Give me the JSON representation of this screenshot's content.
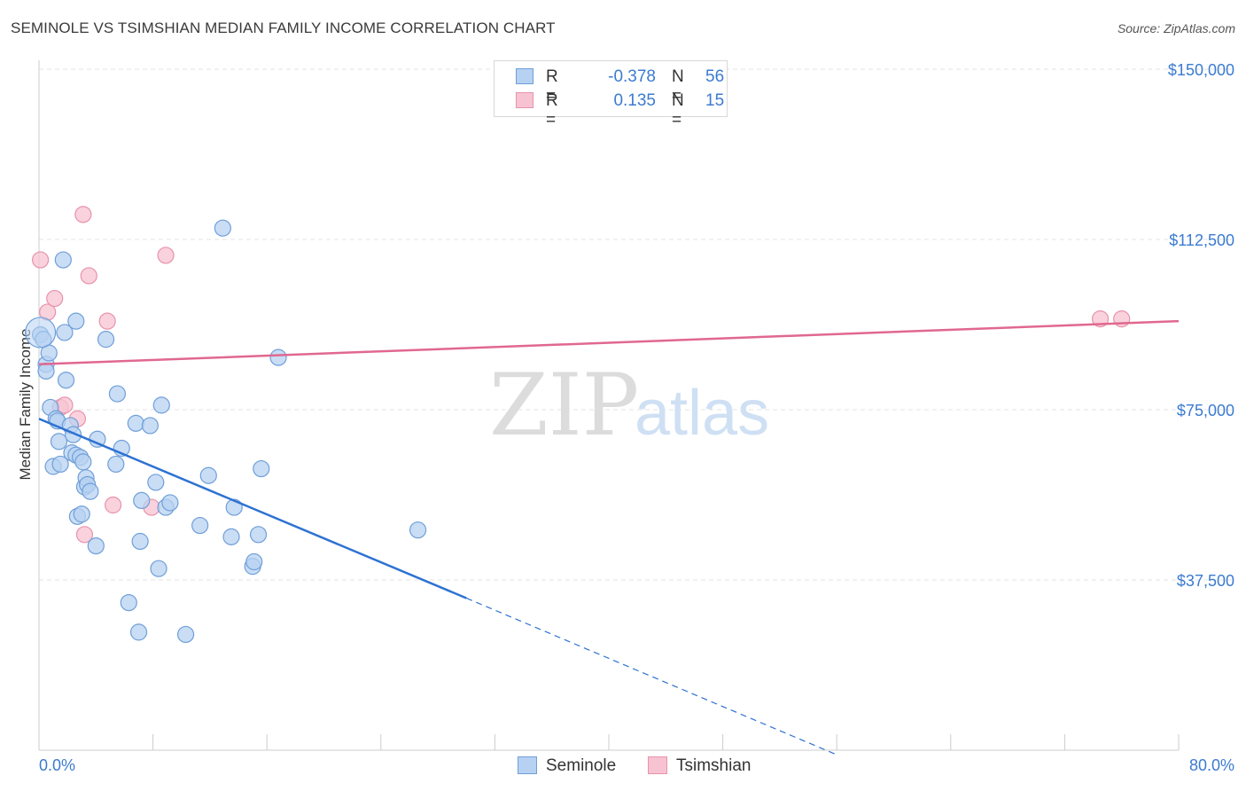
{
  "title": "SEMINOLE VS TSIMSHIAN MEDIAN FAMILY INCOME CORRELATION CHART",
  "source": "Source: ZipAtlas.com",
  "watermark": {
    "zip": "ZIP",
    "atlas": "atlas"
  },
  "legend_top": [
    {
      "r_label": "R =",
      "r_value": "-0.378",
      "n_label": "N =",
      "n_value": "56"
    },
    {
      "r_label": "R =",
      "r_value": "0.135",
      "n_label": "N =",
      "n_value": "15"
    }
  ],
  "legend_bottom": [
    {
      "label": "Seminole"
    },
    {
      "label": "Tsimshian"
    }
  ],
  "colors": {
    "seminole_fill": "#b7d1f2",
    "seminole_stroke": "#6f9fd8",
    "seminole_line": "#2d72d2",
    "tsimshian_fill": "#f7c3d2",
    "tsimshian_stroke": "#e892ac",
    "tsimshian_line": "#e06890",
    "tick_text": "#3b7bd1",
    "grid": "#e3e3e3"
  },
  "chart_data": {
    "type": "scatter",
    "title": "SEMINOLE VS TSIMSHIAN MEDIAN FAMILY INCOME CORRELATION CHART",
    "xlabel": "",
    "ylabel": "Median Family Income",
    "xlim": [
      0,
      80
    ],
    "ylim": [
      0,
      155000
    ],
    "x_tick_labels": [
      "0.0%",
      "80.0%"
    ],
    "y_ticks": [
      37500,
      75000,
      112500,
      150000
    ],
    "y_tick_labels": [
      "$37,500",
      "$75,000",
      "$112,500",
      "$150,000"
    ],
    "series": [
      {
        "name": "Seminole",
        "r": -0.378,
        "n": 56,
        "points": [
          [
            0.1,
            91500
          ],
          [
            0.3,
            90500
          ],
          [
            0.5,
            85000
          ],
          [
            0.5,
            83500
          ],
          [
            0.7,
            87500
          ],
          [
            0.8,
            75500
          ],
          [
            1.0,
            62500
          ],
          [
            1.2,
            73000
          ],
          [
            1.3,
            72500
          ],
          [
            1.4,
            68000
          ],
          [
            1.5,
            63000
          ],
          [
            1.7,
            108000
          ],
          [
            1.8,
            92000
          ],
          [
            1.9,
            81500
          ],
          [
            2.2,
            71500
          ],
          [
            2.3,
            65500
          ],
          [
            2.4,
            69500
          ],
          [
            2.6,
            65000
          ],
          [
            2.6,
            94500
          ],
          [
            2.7,
            51500
          ],
          [
            2.9,
            64500
          ],
          [
            3.0,
            52000
          ],
          [
            3.1,
            63500
          ],
          [
            3.2,
            58000
          ],
          [
            3.3,
            60000
          ],
          [
            3.4,
            58500
          ],
          [
            3.6,
            57000
          ],
          [
            4.0,
            45000
          ],
          [
            4.1,
            68500
          ],
          [
            4.7,
            90500
          ],
          [
            5.5,
            78500
          ],
          [
            5.4,
            63000
          ],
          [
            5.8,
            66500
          ],
          [
            6.3,
            32500
          ],
          [
            6.8,
            72000
          ],
          [
            7.0,
            26000
          ],
          [
            7.1,
            46000
          ],
          [
            7.2,
            55000
          ],
          [
            7.8,
            71500
          ],
          [
            8.2,
            59000
          ],
          [
            8.4,
            40000
          ],
          [
            8.6,
            76000
          ],
          [
            8.9,
            53500
          ],
          [
            9.2,
            54500
          ],
          [
            10.3,
            25500
          ],
          [
            11.3,
            49500
          ],
          [
            11.9,
            60500
          ],
          [
            12.9,
            115000
          ],
          [
            13.5,
            47000
          ],
          [
            13.7,
            53500
          ],
          [
            15.0,
            40500
          ],
          [
            15.1,
            41500
          ],
          [
            15.4,
            47500
          ],
          [
            15.6,
            62000
          ],
          [
            16.8,
            86500
          ],
          [
            26.6,
            48500
          ]
        ],
        "trend": {
          "x_start": 0,
          "y_start": 73000,
          "x_solid_end": 30,
          "y_solid_end": 33500,
          "x_dash_end": 56,
          "y_dash_end": -1000,
          "style": "solid then dashed"
        }
      },
      {
        "name": "Tsimshian",
        "r": 0.135,
        "n": 15,
        "points": [
          [
            0.1,
            108000
          ],
          [
            0.6,
            96500
          ],
          [
            1.1,
            99500
          ],
          [
            1.5,
            75500
          ],
          [
            1.8,
            76000
          ],
          [
            2.7,
            73000
          ],
          [
            3.1,
            118000
          ],
          [
            3.2,
            47500
          ],
          [
            3.5,
            104500
          ],
          [
            4.8,
            94500
          ],
          [
            5.2,
            54000
          ],
          [
            7.9,
            53500
          ],
          [
            8.9,
            109000
          ],
          [
            74.5,
            95000
          ],
          [
            76.0,
            95000
          ]
        ],
        "trend": {
          "x_start": 0,
          "y_start": 85000,
          "x_end": 80,
          "y_end": 94500,
          "style": "solid"
        }
      }
    ]
  }
}
